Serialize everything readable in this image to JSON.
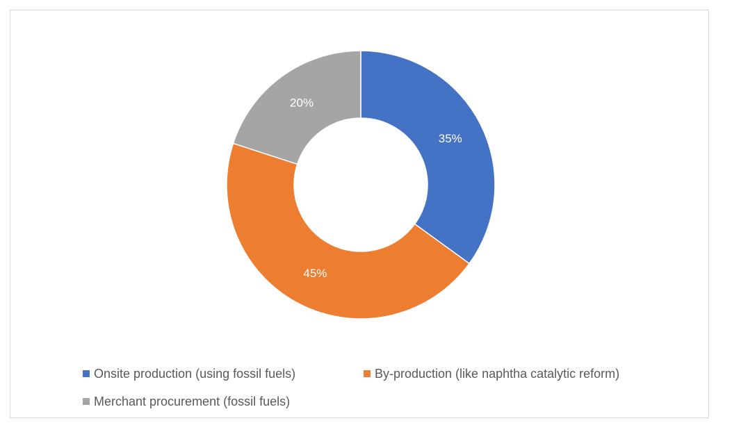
{
  "chart_data": {
    "type": "pie",
    "variant": "donut",
    "title": "",
    "categories": [
      "Onsite production (using fossil fuels)",
      "By-production (like naphtha catalytic reform)",
      "Merchant procurement (fossil fuels)"
    ],
    "values": [
      35,
      45,
      20
    ],
    "labels": [
      "35%",
      "45%",
      "20%"
    ],
    "colors": [
      "#4472C4",
      "#ED7D31",
      "#A5A5A5"
    ],
    "legend_position": "bottom"
  }
}
